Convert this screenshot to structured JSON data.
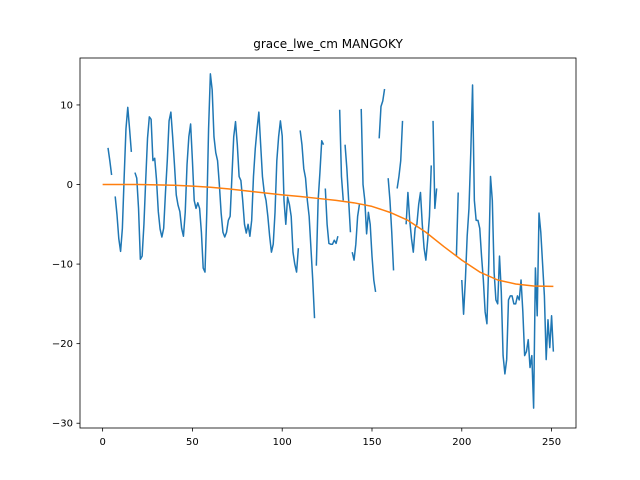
{
  "chart_data": {
    "type": "line",
    "title": "grace_lwe_cm MANGOKY",
    "xlabel": "",
    "ylabel": "",
    "xlim": [
      -12.6,
      263.6
    ],
    "ylim": [
      -30.6,
      15.9
    ],
    "x_ticks": [
      0,
      50,
      100,
      150,
      200,
      250
    ],
    "y_ticks": [
      -30,
      -20,
      -10,
      0,
      10
    ],
    "x_tick_labels": [
      "0",
      "50",
      "100",
      "150",
      "200",
      "250"
    ],
    "y_tick_labels": [
      "−30",
      "−20",
      "−10",
      "0",
      "10"
    ],
    "grid": false,
    "legend": "none",
    "series": [
      {
        "color": "#1f77b4",
        "segments": [
          [
            [
              3,
              4.6
            ],
            [
              4,
              3.0
            ],
            [
              5,
              1.2
            ]
          ],
          [
            [
              7,
              -1.5
            ],
            [
              8,
              -3.8
            ],
            [
              9,
              -6.8
            ],
            [
              10,
              -8.4
            ],
            [
              11,
              -5.5
            ],
            [
              12,
              1.0
            ],
            [
              13,
              7.0
            ],
            [
              14,
              9.7
            ],
            [
              15,
              7.0
            ],
            [
              16,
              4.1
            ]
          ],
          [
            [
              18,
              1.5
            ],
            [
              19,
              0.8
            ],
            [
              20,
              -3.0
            ],
            [
              21,
              -9.4
            ],
            [
              22,
              -9.0
            ],
            [
              23,
              -5.0
            ],
            [
              24,
              0.6
            ],
            [
              25,
              5.8
            ],
            [
              26,
              8.5
            ],
            [
              27,
              8.2
            ],
            [
              28,
              3.0
            ],
            [
              29,
              3.3
            ],
            [
              30,
              0.6
            ],
            [
              31,
              -3.4
            ],
            [
              32,
              -5.6
            ],
            [
              33,
              -6.6
            ],
            [
              34,
              -5.5
            ],
            [
              35,
              -1.0
            ],
            [
              36,
              3.0
            ],
            [
              37,
              8.0
            ],
            [
              38,
              9.1
            ],
            [
              39,
              6.0
            ],
            [
              40,
              2.5
            ],
            [
              41,
              -1.3
            ],
            [
              42,
              -2.6
            ],
            [
              43,
              -3.4
            ],
            [
              44,
              -5.5
            ],
            [
              45,
              -6.5
            ],
            [
              46,
              -3.5
            ],
            [
              47,
              2.5
            ],
            [
              48,
              6.0
            ],
            [
              49,
              7.6
            ],
            [
              50,
              3.0
            ],
            [
              51,
              -2.0
            ],
            [
              52,
              -3.0
            ],
            [
              53,
              -2.3
            ],
            [
              54,
              -3.0
            ],
            [
              55,
              -6.0
            ],
            [
              56,
              -10.5
            ],
            [
              57,
              -11.0
            ],
            [
              58,
              -3.5
            ],
            [
              59,
              7.0
            ],
            [
              60,
              13.9
            ],
            [
              61,
              11.9
            ],
            [
              62,
              6.0
            ],
            [
              63,
              4.0
            ],
            [
              64,
              3.0
            ],
            [
              65,
              0.0
            ],
            [
              66,
              -3.6
            ],
            [
              67,
              -6.0
            ],
            [
              68,
              -6.6
            ],
            [
              69,
              -6.0
            ],
            [
              70,
              -4.5
            ],
            [
              71,
              -4.0
            ],
            [
              72,
              1.0
            ],
            [
              73,
              6.0
            ],
            [
              74,
              7.9
            ],
            [
              75,
              5.0
            ],
            [
              76,
              1.0
            ],
            [
              77,
              0.5
            ],
            [
              78,
              -2.0
            ],
            [
              79,
              -5.0
            ],
            [
              80,
              -6.1
            ],
            [
              81,
              -5.0
            ],
            [
              82,
              -6.5
            ],
            [
              83,
              -4.5
            ],
            [
              84,
              1.0
            ],
            [
              85,
              4.5
            ],
            [
              86,
              7.0
            ],
            [
              87,
              9.1
            ],
            [
              88,
              5.0
            ],
            [
              89,
              1.0
            ],
            [
              90,
              -1.0
            ],
            [
              91,
              -2.0
            ],
            [
              92,
              -4.0
            ],
            [
              93,
              -6.5
            ],
            [
              94,
              -8.5
            ],
            [
              95,
              -7.5
            ],
            [
              96,
              -3.5
            ],
            [
              97,
              3.0
            ],
            [
              98,
              6.0
            ],
            [
              99,
              8.0
            ],
            [
              100,
              6.1
            ],
            [
              101,
              -2.0
            ],
            [
              102,
              -5.0
            ],
            [
              103,
              -1.6
            ],
            [
              104,
              -2.5
            ],
            [
              105,
              -4.0
            ],
            [
              106,
              -8.5
            ],
            [
              107,
              -10.0
            ],
            [
              108,
              -11.0
            ],
            [
              109,
              -8.0
            ]
          ],
          [
            [
              110,
              6.8
            ],
            [
              111,
              5.0
            ],
            [
              112,
              2.0
            ],
            [
              113,
              0.8
            ],
            [
              114,
              -2.0
            ],
            [
              115,
              -4.0
            ],
            [
              116,
              -8.0
            ],
            [
              117,
              -12.0
            ],
            [
              118,
              -16.8
            ]
          ],
          [
            [
              119,
              -10.2
            ],
            [
              120,
              -2.0
            ],
            [
              121,
              1.5
            ],
            [
              122,
              5.5
            ],
            [
              123,
              5.0
            ]
          ],
          [
            [
              124,
              -0.5
            ],
            [
              125,
              -5.0
            ],
            [
              126,
              -7.4
            ],
            [
              127,
              -7.5
            ],
            [
              128,
              -7.5
            ],
            [
              129,
              -7.0
            ],
            [
              130,
              -7.4
            ],
            [
              131,
              -6.5
            ]
          ],
          [
            [
              132,
              9.4
            ],
            [
              133,
              1.0
            ],
            [
              134,
              -2.0
            ]
          ],
          [
            [
              135,
              5.0
            ],
            [
              136,
              2.0
            ],
            [
              137,
              -2.0
            ],
            [
              138,
              -6.0
            ]
          ],
          [
            [
              139,
              -8.5
            ],
            [
              140,
              -9.5
            ],
            [
              141,
              -7.5
            ],
            [
              142,
              -4.0
            ],
            [
              143,
              -2.5
            ]
          ],
          [
            [
              144,
              9.5
            ],
            [
              145,
              0.0
            ],
            [
              146,
              -2.0
            ],
            [
              147,
              -6.2
            ],
            [
              148,
              -3.5
            ],
            [
              149,
              -5.0
            ],
            [
              150,
              -9.0
            ],
            [
              151,
              -12.0
            ],
            [
              152,
              -13.5
            ]
          ],
          [
            [
              154,
              5.8
            ],
            [
              155,
              9.8
            ],
            [
              156,
              10.5
            ],
            [
              157,
              12.0
            ]
          ],
          [
            [
              159,
              0.8
            ],
            [
              160,
              -2.0
            ],
            [
              161,
              -6.0
            ],
            [
              162,
              -10.8
            ]
          ],
          [
            [
              164,
              -0.5
            ],
            [
              165,
              1.0
            ],
            [
              166,
              3.0
            ],
            [
              167,
              8.0
            ]
          ],
          [
            [
              169,
              -5.0
            ],
            [
              170,
              -1.0
            ],
            [
              171,
              -4.5
            ],
            [
              172,
              -6.8
            ],
            [
              173,
              -8.5
            ],
            [
              174,
              -5.5
            ],
            [
              175,
              -5.0
            ],
            [
              176,
              -2.5
            ],
            [
              177,
              -1.0
            ],
            [
              178,
              -5.0
            ],
            [
              179,
              -8.0
            ],
            [
              180,
              -9.5
            ],
            [
              181,
              -7.0
            ],
            [
              182,
              -4.0
            ],
            [
              183,
              2.4
            ]
          ],
          [
            [
              184,
              8.0
            ],
            [
              185,
              -3.0
            ],
            [
              186,
              -0.5
            ]
          ],
          [
            [
              197,
              -9.0
            ],
            [
              198,
              -1.0
            ]
          ],
          [
            [
              200,
              -12.0
            ],
            [
              201,
              -16.3
            ],
            [
              202,
              -12.0
            ],
            [
              203,
              -6.5
            ],
            [
              204,
              -3.0
            ],
            [
              205,
              4.0
            ],
            [
              206,
              12.5
            ],
            [
              207,
              -2.0
            ],
            [
              208,
              -4.5
            ],
            [
              209,
              -4.5
            ],
            [
              210,
              -5.5
            ],
            [
              211,
              -9.0
            ],
            [
              212,
              -12.0
            ],
            [
              213,
              -16.0
            ],
            [
              214,
              -17.5
            ],
            [
              215,
              -10.0
            ],
            [
              216,
              1.0
            ],
            [
              217,
              -2.0
            ],
            [
              218,
              -11.0
            ],
            [
              219,
              -14.5
            ],
            [
              220,
              -15.0
            ],
            [
              221,
              -9.0
            ],
            [
              222,
              -13.5
            ],
            [
              223,
              -21.5
            ],
            [
              224,
              -23.8
            ],
            [
              225,
              -22.0
            ],
            [
              226,
              -14.5
            ],
            [
              227,
              -14.0
            ],
            [
              228,
              -14.0
            ],
            [
              229,
              -15.0
            ],
            [
              230,
              -15.0
            ],
            [
              231,
              -14.0
            ],
            [
              232,
              -14.5
            ],
            [
              233,
              -12.0
            ],
            [
              234,
              -16.0
            ],
            [
              235,
              -21.5
            ],
            [
              236,
              -21.0
            ],
            [
              237,
              -19.5
            ],
            [
              238,
              -23.0
            ],
            [
              239,
              -21.5
            ],
            [
              240,
              -28.1
            ],
            [
              241,
              -10.5
            ],
            [
              242,
              -16.5
            ],
            [
              243,
              -3.6
            ],
            [
              244,
              -6.0
            ],
            [
              245,
              -10.0
            ],
            [
              246,
              -14.0
            ],
            [
              247,
              -22.0
            ],
            [
              248,
              -17.0
            ],
            [
              249,
              -20.5
            ],
            [
              250,
              -16.5
            ],
            [
              251,
              -21.0
            ]
          ]
        ]
      },
      {
        "color": "#ff7f0e",
        "points": [
          [
            0,
            0.0
          ],
          [
            10,
            0.0
          ],
          [
            20,
            0.0
          ],
          [
            30,
            -0.05
          ],
          [
            40,
            -0.1
          ],
          [
            50,
            -0.2
          ],
          [
            60,
            -0.35
          ],
          [
            70,
            -0.55
          ],
          [
            80,
            -0.8
          ],
          [
            90,
            -1.05
          ],
          [
            100,
            -1.3
          ],
          [
            110,
            -1.5
          ],
          [
            120,
            -1.75
          ],
          [
            130,
            -2.0
          ],
          [
            140,
            -2.3
          ],
          [
            150,
            -2.75
          ],
          [
            160,
            -3.5
          ],
          [
            170,
            -4.5
          ],
          [
            180,
            -6.0
          ],
          [
            190,
            -7.8
          ],
          [
            200,
            -9.5
          ],
          [
            210,
            -11.0
          ],
          [
            220,
            -12.0
          ],
          [
            230,
            -12.5
          ],
          [
            240,
            -12.75
          ],
          [
            250,
            -12.8
          ],
          [
            251,
            -12.8
          ]
        ]
      }
    ]
  }
}
